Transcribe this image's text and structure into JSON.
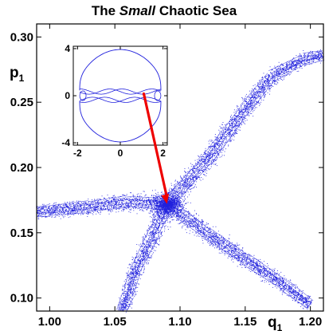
{
  "chart_data": [
    {
      "type": "scatter",
      "title": {
        "prefix": "The ",
        "emphasis": "Small",
        "suffix": " Chaotic Sea"
      },
      "xlabel": {
        "base": "q",
        "sub": "1"
      },
      "ylabel": {
        "base": "p",
        "sub": "1"
      },
      "xlim": [
        0.99,
        1.21
      ],
      "ylim": [
        0.09,
        0.31
      ],
      "xticks": [
        1.0,
        1.05,
        1.1,
        1.15,
        1.2
      ],
      "xtick_labels": [
        "1.00",
        "1.05",
        "1.10",
        "1.15",
        "1.20"
      ],
      "yticks": [
        0.1,
        0.15,
        0.2,
        0.25,
        0.3
      ],
      "ytick_labels": [
        "0.10",
        "0.15",
        "0.20",
        "0.25",
        "0.30"
      ],
      "series_color": "#2222dd",
      "center": [
        1.09,
        0.172
      ],
      "arms": [
        {
          "direction": "upper-right",
          "path": [
            [
              1.09,
              0.172
            ],
            [
              1.12,
              0.205
            ],
            [
              1.15,
              0.245
            ],
            [
              1.17,
              0.27
            ],
            [
              1.195,
              0.283
            ],
            [
              1.21,
              0.286
            ]
          ]
        },
        {
          "direction": "left",
          "path": [
            [
              1.09,
              0.172
            ],
            [
              1.06,
              0.174
            ],
            [
              1.03,
              0.17
            ],
            [
              1.0,
              0.167
            ],
            [
              0.99,
              0.166
            ]
          ]
        },
        {
          "direction": "down",
          "path": [
            [
              1.09,
              0.172
            ],
            [
              1.08,
              0.15
            ],
            [
              1.065,
              0.12
            ],
            [
              1.06,
              0.102
            ],
            [
              1.055,
              0.09
            ]
          ]
        },
        {
          "direction": "lower-right",
          "path": [
            [
              1.09,
              0.172
            ],
            [
              1.12,
              0.15
            ],
            [
              1.15,
              0.13
            ],
            [
              1.18,
              0.11
            ],
            [
              1.2,
              0.095
            ]
          ]
        }
      ]
    },
    {
      "type": "line",
      "role": "inset",
      "xlim": [
        -2.2,
        2.2
      ],
      "ylim": [
        -4.2,
        4.2
      ],
      "xticks": [
        -2,
        0,
        2
      ],
      "xtick_labels": [
        "-2",
        "0",
        "2"
      ],
      "yticks": [
        -4,
        0,
        4
      ],
      "ytick_labels": [
        "-4",
        "0",
        "4"
      ],
      "series_color": "#2222dd",
      "highlight_point": [
        1.1,
        0.17
      ]
    }
  ],
  "colors": {
    "arrow": "#ee0000",
    "data": "#2222dd",
    "axes": "#000000"
  }
}
